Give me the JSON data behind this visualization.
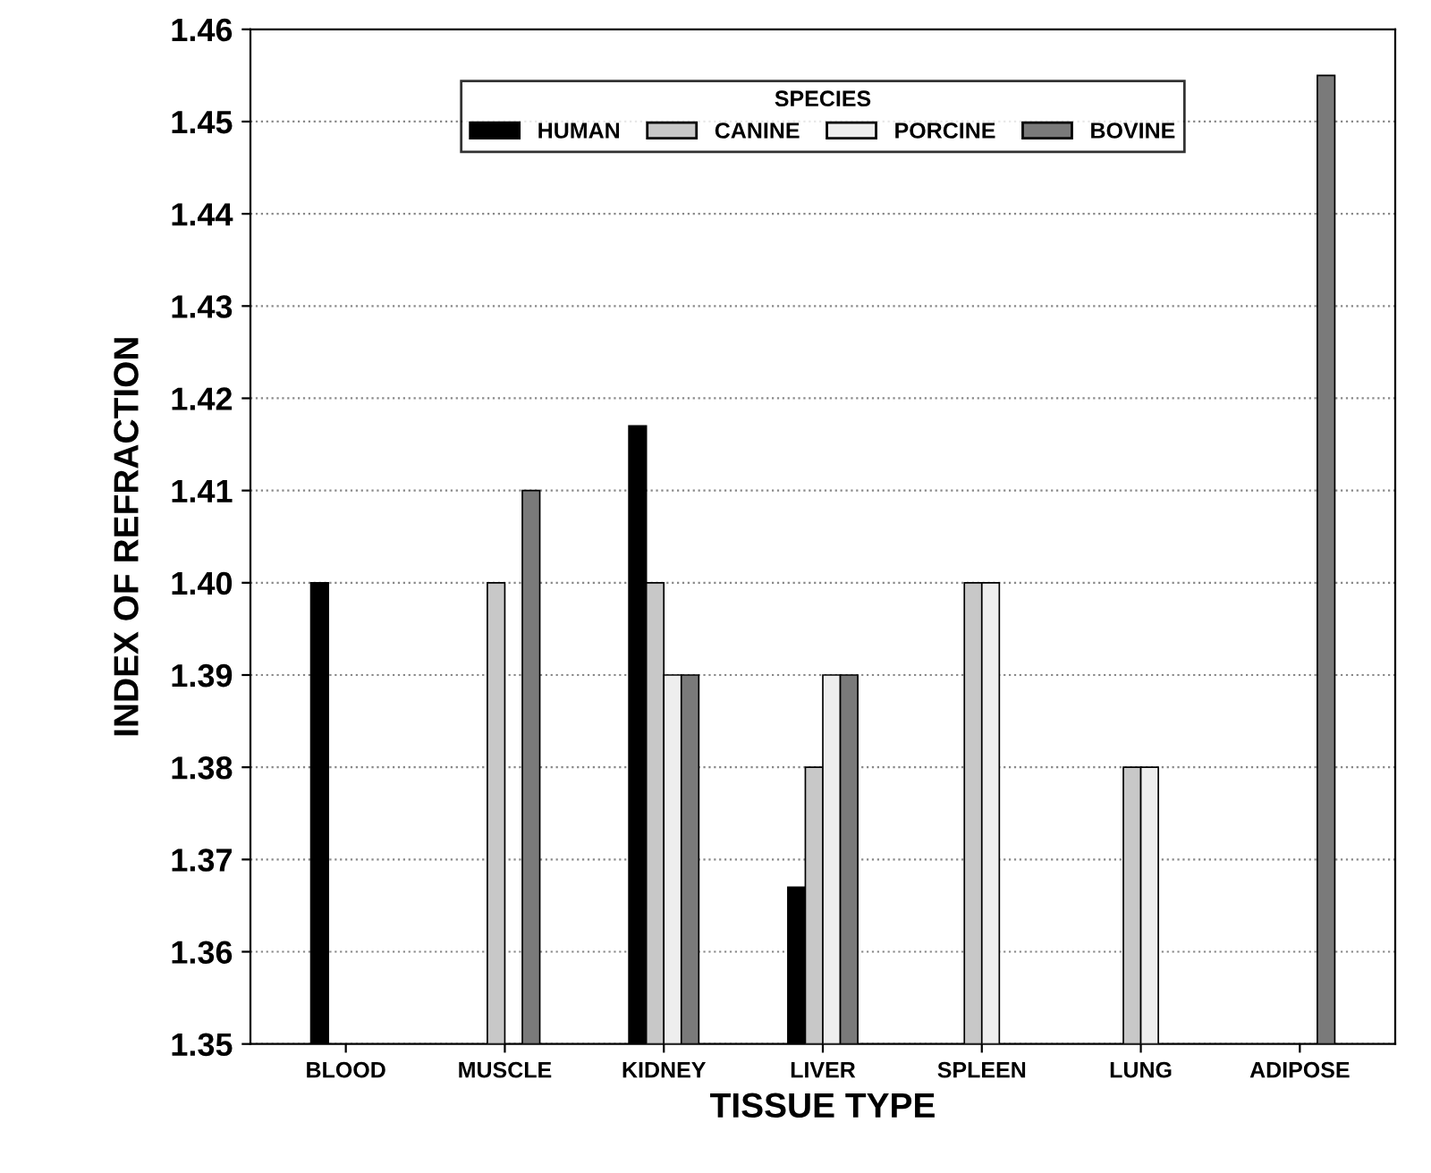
{
  "chart_data": {
    "type": "bar",
    "xlabel": "TISSUE TYPE",
    "ylabel": "INDEX OF REFRACTION",
    "legend_title": "SPECIES",
    "categories": [
      "BLOOD",
      "MUSCLE",
      "KIDNEY",
      "LIVER",
      "SPLEEN",
      "LUNG",
      "ADIPOSE"
    ],
    "series": [
      {
        "name": "HUMAN",
        "color": "#000000",
        "values": [
          1.4,
          null,
          1.417,
          1.367,
          null,
          null,
          null
        ]
      },
      {
        "name": "CANINE",
        "color": "#c8c8c8",
        "values": [
          null,
          1.4,
          1.4,
          1.38,
          1.4,
          1.38,
          null
        ]
      },
      {
        "name": "PORCINE",
        "color": "#eeeeee",
        "values": [
          null,
          null,
          1.39,
          1.39,
          1.4,
          1.38,
          null
        ]
      },
      {
        "name": "BOVINE",
        "color": "#7a7a7a",
        "values": [
          null,
          1.41,
          1.39,
          1.39,
          null,
          null,
          1.455
        ]
      }
    ],
    "ylim": [
      1.35,
      1.46
    ],
    "yticks": [
      1.35,
      1.36,
      1.37,
      1.38,
      1.39,
      {
        "value": 1.4,
        "label": "1.40"
      },
      1.41,
      1.42,
      1.43,
      1.44,
      1.45,
      1.46
    ],
    "grid": "y",
    "legend": "top"
  }
}
